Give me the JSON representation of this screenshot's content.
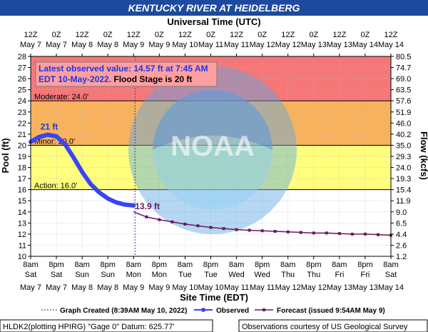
{
  "chart_data": {
    "type": "line",
    "title": "KENTUCKY RIVER AT HEIDELBERG",
    "top_axis_title": "Universal Time (UTC)",
    "xlabel": "Site Time (EDT)",
    "ylabel": "Pool (ft)",
    "y2label": "Flow (kcfs)",
    "ylim": [
      10,
      28
    ],
    "yticks": [
      10,
      11,
      12,
      13,
      14,
      15,
      16,
      17,
      18,
      19,
      20,
      21,
      22,
      23,
      24,
      25,
      26,
      27,
      28
    ],
    "y2_ticks": [
      "1.2",
      "2.6",
      "4.4",
      "6.5",
      "9.0",
      "11.9",
      "15.4",
      "19.3",
      "24.0",
      "29.3",
      "35.0",
      "40.2",
      "46.0",
      "51.9",
      "57.6",
      "63.5",
      "69.0",
      "74.7",
      "80.5"
    ],
    "xlim_hours": [
      0,
      168
    ],
    "x_ticks_bottom": [
      {
        "time": "8am",
        "day": "Sat",
        "date": "May 7"
      },
      {
        "time": "8pm",
        "day": "Sat",
        "date": "May 7"
      },
      {
        "time": "8am",
        "day": "Sun",
        "date": "May 8"
      },
      {
        "time": "8pm",
        "day": "Sun",
        "date": "May 8"
      },
      {
        "time": "8am",
        "day": "Mon",
        "date": "May 9"
      },
      {
        "time": "8pm",
        "day": "Mon",
        "date": "May 9"
      },
      {
        "time": "8am",
        "day": "Tue",
        "date": "May 10"
      },
      {
        "time": "8pm",
        "day": "Tue",
        "date": "May 10"
      },
      {
        "time": "8am",
        "day": "Wed",
        "date": "May 11"
      },
      {
        "time": "8pm",
        "day": "Wed",
        "date": "May 11"
      },
      {
        "time": "8am",
        "day": "Thu",
        "date": "May 12"
      },
      {
        "time": "8pm",
        "day": "Thu",
        "date": "May 12"
      },
      {
        "time": "8am",
        "day": "Fri",
        "date": "May 13"
      },
      {
        "time": "8pm",
        "day": "Fri",
        "date": "May 13"
      },
      {
        "time": "8am",
        "day": "Sat",
        "date": "May 14"
      }
    ],
    "x_ticks_top": [
      {
        "time": "12Z",
        "date": "May 7"
      },
      {
        "time": "0Z",
        "date": "May 7"
      },
      {
        "time": "12Z",
        "date": "May 8"
      },
      {
        "time": "0Z",
        "date": "May 8"
      },
      {
        "time": "12Z",
        "date": "May 9"
      },
      {
        "time": "0Z",
        "date": "May 9"
      },
      {
        "time": "12Z",
        "date": "May 10"
      },
      {
        "time": "0Z",
        "date": "May 11"
      },
      {
        "time": "12Z",
        "date": "May 11"
      },
      {
        "time": "0Z",
        "date": "May 12"
      },
      {
        "time": "12Z",
        "date": "May 12"
      },
      {
        "time": "0Z",
        "date": "May 13"
      },
      {
        "time": "12Z",
        "date": "May 13"
      },
      {
        "time": "0Z",
        "date": "May 14"
      },
      {
        "time": "12Z",
        "date": "May 14"
      }
    ],
    "bands": [
      {
        "from": 24,
        "to": 28,
        "color": "#f47878",
        "label": ""
      },
      {
        "from": 20,
        "to": 24,
        "color": "#f8b25e",
        "label": "Moderate: 24.0'"
      },
      {
        "from": 16,
        "to": 20,
        "color": "#ffff7d",
        "label": "Minor: 20.0'"
      },
      {
        "from": 10,
        "to": 16,
        "color": "#ffffff",
        "label": "Action: 16.0'"
      }
    ],
    "note_line1": "Latest observed value: 14.57 ft at 7:45 AM",
    "note_line2_a": "EDT 10-May-2022.",
    "note_line2_b": " Flood Stage is 20 ft",
    "graph_created_hour": 48.65,
    "series": [
      {
        "name": "Observed",
        "color": "#3b44f5",
        "hours": [
          0,
          4,
          8,
          12,
          16,
          20,
          24,
          28,
          32,
          36,
          40,
          44,
          48,
          47.75
        ],
        "values": [
          20.3,
          20.75,
          20.95,
          20.8,
          20.1,
          18.9,
          17.6,
          16.5,
          15.75,
          15.2,
          14.85,
          14.65,
          14.58,
          14.57
        ]
      },
      {
        "name": "Forecast (issued 9:54AM May 9)",
        "color": "#6b1a5a",
        "hours": [
          48,
          54,
          60,
          66,
          72,
          78,
          84,
          90,
          96,
          102,
          108,
          114,
          120,
          126,
          132,
          138,
          144,
          150,
          156,
          162,
          168
        ],
        "values": [
          14.0,
          13.55,
          13.3,
          13.1,
          12.9,
          12.75,
          12.6,
          12.5,
          12.4,
          12.35,
          12.3,
          12.25,
          12.2,
          12.15,
          12.1,
          12.1,
          12.05,
          12.0,
          12.0,
          11.95,
          11.9
        ]
      }
    ],
    "annotations": [
      {
        "text": "21 ft",
        "series": 0
      },
      {
        "text": "13.9 ft",
        "series": 1
      }
    ],
    "legend": {
      "graph_created": "Graph Created (8:39AM May 10, 2022)",
      "observed": "Observed",
      "forecast": "Forecast (issued 9:54AM May 9)"
    },
    "footer_left": "HLDK2(plotting HPIRG) \"Gage 0\" Datum: 625.77'",
    "footer_right": "Observations courtesy of US Geological Survey",
    "watermark": "NOAA NATIONAL OCEANIC AND ATMOSPHERIC ADMINISTRATION U.S. DEPARTMENT OF COMMERCE"
  }
}
